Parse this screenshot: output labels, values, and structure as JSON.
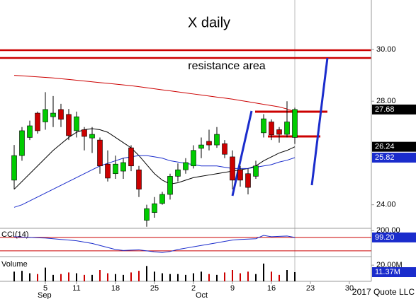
{
  "chart_data": {
    "type": "candlestick",
    "title": "X daily",
    "annotation": "resistance area",
    "credit": "2017 Quote LLC",
    "categories": [
      null,
      null,
      null,
      null,
      "5",
      null,
      null,
      null,
      "11",
      null,
      null,
      null,
      null,
      "18",
      null,
      null,
      null,
      null,
      "25",
      null,
      null,
      null,
      null,
      "2",
      null,
      null,
      null,
      null,
      "9",
      null,
      null,
      null,
      null,
      "16",
      null,
      null,
      null,
      null,
      "23",
      null,
      null,
      null,
      null,
      "30"
    ],
    "months": [
      "Sep",
      "Oct"
    ],
    "open": [
      24.95,
      25.9,
      26.6,
      27.54,
      27.2,
      27.4,
      27.68,
      27.49,
      26.86,
      26.9,
      26.58,
      26.5,
      25.57,
      25.2,
      25.3,
      26.2,
      25.35,
      23.4,
      23.7,
      24.05,
      24.4,
      25.1,
      25.35,
      25.5,
      26.18,
      26.45,
      26.31,
      26.36,
      25.85,
      25.35,
      25.2,
      25.1,
      26.78,
      27.2,
      26.9,
      26.72,
      26.6,
      null,
      null,
      null,
      null,
      null,
      null,
      null
    ],
    "high": [
      26.31,
      27.0,
      27.25,
      27.6,
      28.35,
      28.2,
      27.9,
      27.7,
      27.6,
      27.0,
      27.0,
      26.6,
      26.1,
      25.9,
      25.8,
      26.3,
      25.5,
      24.0,
      24.3,
      24.5,
      25.2,
      25.6,
      25.8,
      26.3,
      26.6,
      26.9,
      27.0,
      26.5,
      26.1,
      25.5,
      25.4,
      25.7,
      27.5,
      27.3,
      27.0,
      28.0,
      27.75,
      null,
      null,
      null,
      null,
      null,
      null,
      null
    ],
    "low": [
      24.6,
      25.7,
      26.5,
      26.75,
      26.9,
      27.0,
      27.0,
      26.5,
      26.6,
      26.1,
      26.0,
      25.2,
      24.9,
      25.0,
      25.0,
      25.3,
      24.3,
      23.15,
      23.5,
      24.0,
      24.2,
      24.9,
      25.2,
      25.4,
      25.8,
      26.1,
      26.2,
      25.8,
      24.6,
      24.7,
      24.4,
      25.0,
      26.6,
      26.5,
      26.4,
      26.6,
      26.35,
      null,
      null,
      null,
      null,
      null,
      null,
      null
    ],
    "close": [
      25.9,
      26.86,
      27.05,
      26.86,
      27.68,
      27.54,
      27.3,
      26.67,
      27.4,
      26.64,
      26.72,
      25.5,
      25.03,
      25.57,
      25.63,
      25.5,
      24.6,
      23.85,
      24.04,
      24.4,
      25.1,
      25.35,
      25.63,
      26.1,
      26.31,
      26.31,
      26.72,
      25.95,
      24.95,
      24.95,
      24.67,
      25.5,
      27.32,
      26.7,
      26.72,
      27.2,
      27.68,
      null,
      null,
      null,
      null,
      null,
      null,
      null
    ],
    "up_color": "#00cc00",
    "down_color": "#cc0000",
    "last_label": "27.68",
    "ylim": [
      23.09,
      31.91
    ],
    "yticks": [
      {
        "value": 30,
        "label": "30.00"
      },
      {
        "value": 28,
        "label": "28.00"
      },
      {
        "value": 24,
        "label": "24.00"
      }
    ],
    "overlays": [
      {
        "color": "#000000",
        "label": "26.24",
        "values": [
          24.6,
          24.9,
          25.2,
          25.5,
          25.8,
          26.1,
          26.35,
          26.6,
          26.8,
          26.9,
          26.94,
          26.9,
          26.8,
          26.6,
          26.4,
          26.2,
          25.9,
          25.55,
          25.2,
          24.95,
          24.8,
          24.85,
          24.95,
          25.05,
          25.1,
          25.15,
          25.2,
          25.25,
          25.3,
          25.35,
          25.4,
          25.5,
          25.7,
          25.85,
          26.0,
          26.1,
          26.24,
          null,
          null,
          null,
          null,
          null,
          null,
          null
        ]
      },
      {
        "color": "#1a2ccc",
        "label": "25.82",
        "values": [
          23.9,
          24.0,
          24.15,
          24.3,
          24.45,
          24.6,
          24.75,
          24.9,
          25.05,
          25.2,
          25.35,
          25.5,
          25.6,
          25.7,
          25.8,
          25.85,
          25.9,
          25.9,
          25.85,
          25.8,
          25.7,
          25.65,
          25.6,
          25.55,
          25.5,
          25.5,
          25.5,
          25.45,
          25.4,
          25.4,
          25.4,
          25.45,
          25.5,
          25.55,
          25.65,
          25.72,
          25.82,
          null,
          null,
          null,
          null,
          null,
          null,
          null
        ]
      },
      {
        "color": "#cc0000",
        "values": [
          29.0,
          28.98,
          28.96,
          28.94,
          28.92,
          28.9,
          28.87,
          28.84,
          28.81,
          28.78,
          28.75,
          28.72,
          28.69,
          28.66,
          28.63,
          28.6,
          28.56,
          28.52,
          28.48,
          28.44,
          28.4,
          28.36,
          28.32,
          28.28,
          28.24,
          28.2,
          28.16,
          28.12,
          28.08,
          28.03,
          27.98,
          27.93,
          27.88,
          27.83,
          27.78,
          27.7,
          27.6,
          null,
          null,
          null,
          null,
          null,
          null,
          null
        ]
      }
    ],
    "cci": {
      "label": "CCI(14)",
      "color": "#1a2ccc",
      "level_color": "#cc0000",
      "values": [
        110,
        105,
        100,
        95,
        90,
        80,
        70,
        60,
        50,
        30,
        10,
        -20,
        -50,
        -80,
        -95,
        -90,
        -85,
        -100,
        -115,
        -125,
        -110,
        -80,
        -60,
        -40,
        -20,
        0,
        20,
        40,
        60,
        70,
        75,
        80,
        130,
        110,
        115,
        120,
        99.2,
        null,
        null,
        null,
        null,
        null,
        null,
        null
      ],
      "levels": [
        100,
        -100
      ],
      "ylim": [
        -175,
        235
      ],
      "yticks": [
        {
          "value": 200,
          "label": "200.00"
        }
      ],
      "last_label": "99.20"
    },
    "volume": {
      "label": "Volume",
      "values": [
        12,
        13,
        10,
        9,
        17,
        8,
        9,
        11,
        10,
        8,
        8,
        14,
        10,
        9,
        8,
        11,
        13,
        19,
        12,
        10,
        9,
        9,
        8,
        10,
        12,
        9,
        8,
        11,
        14,
        10,
        12,
        9,
        22,
        12,
        8,
        14,
        11.37,
        null,
        null,
        null,
        null,
        null,
        null,
        null
      ],
      "ylim": [
        0,
        28
      ],
      "yticks": [
        {
          "value": 20,
          "label": "20.00M"
        }
      ],
      "last_label": "11.37M"
    }
  }
}
